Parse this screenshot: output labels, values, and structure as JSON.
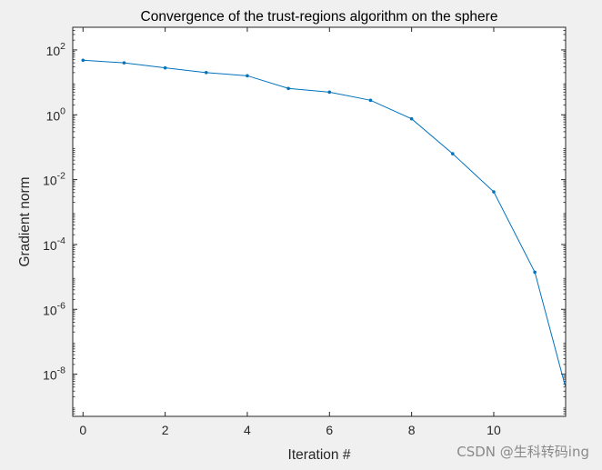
{
  "chart_data": {
    "type": "line",
    "title": "Convergence of the trust-regions algorithm on the sphere",
    "xlabel": "Iteration #",
    "ylabel": "Gradient norm",
    "yscale": "log",
    "xlim": [
      -0.25,
      11.75
    ],
    "ylim": [
      5e-10,
      500
    ],
    "grid": false,
    "x_ticks": [
      0,
      2,
      4,
      6,
      8,
      10
    ],
    "y_tick_exponents": [
      -8,
      -6,
      -4,
      -2,
      0,
      2
    ],
    "y_tick_base": "10",
    "series": [
      {
        "color": "#0072bd",
        "x": [
          0,
          1,
          2,
          3,
          4,
          5,
          6,
          7,
          8,
          9,
          10,
          11,
          12
        ],
        "y": [
          48,
          40,
          28,
          20,
          16,
          6.5,
          5.0,
          2.8,
          0.75,
          0.063,
          0.0042,
          1.4e-05,
          2.5e-10
        ]
      }
    ]
  },
  "watermark": "CSDN @生科转码ing",
  "colors": {
    "background": "#f0f0f0",
    "plot_area": "#ffffff",
    "axis": "#262626",
    "series": "#0072bd"
  }
}
